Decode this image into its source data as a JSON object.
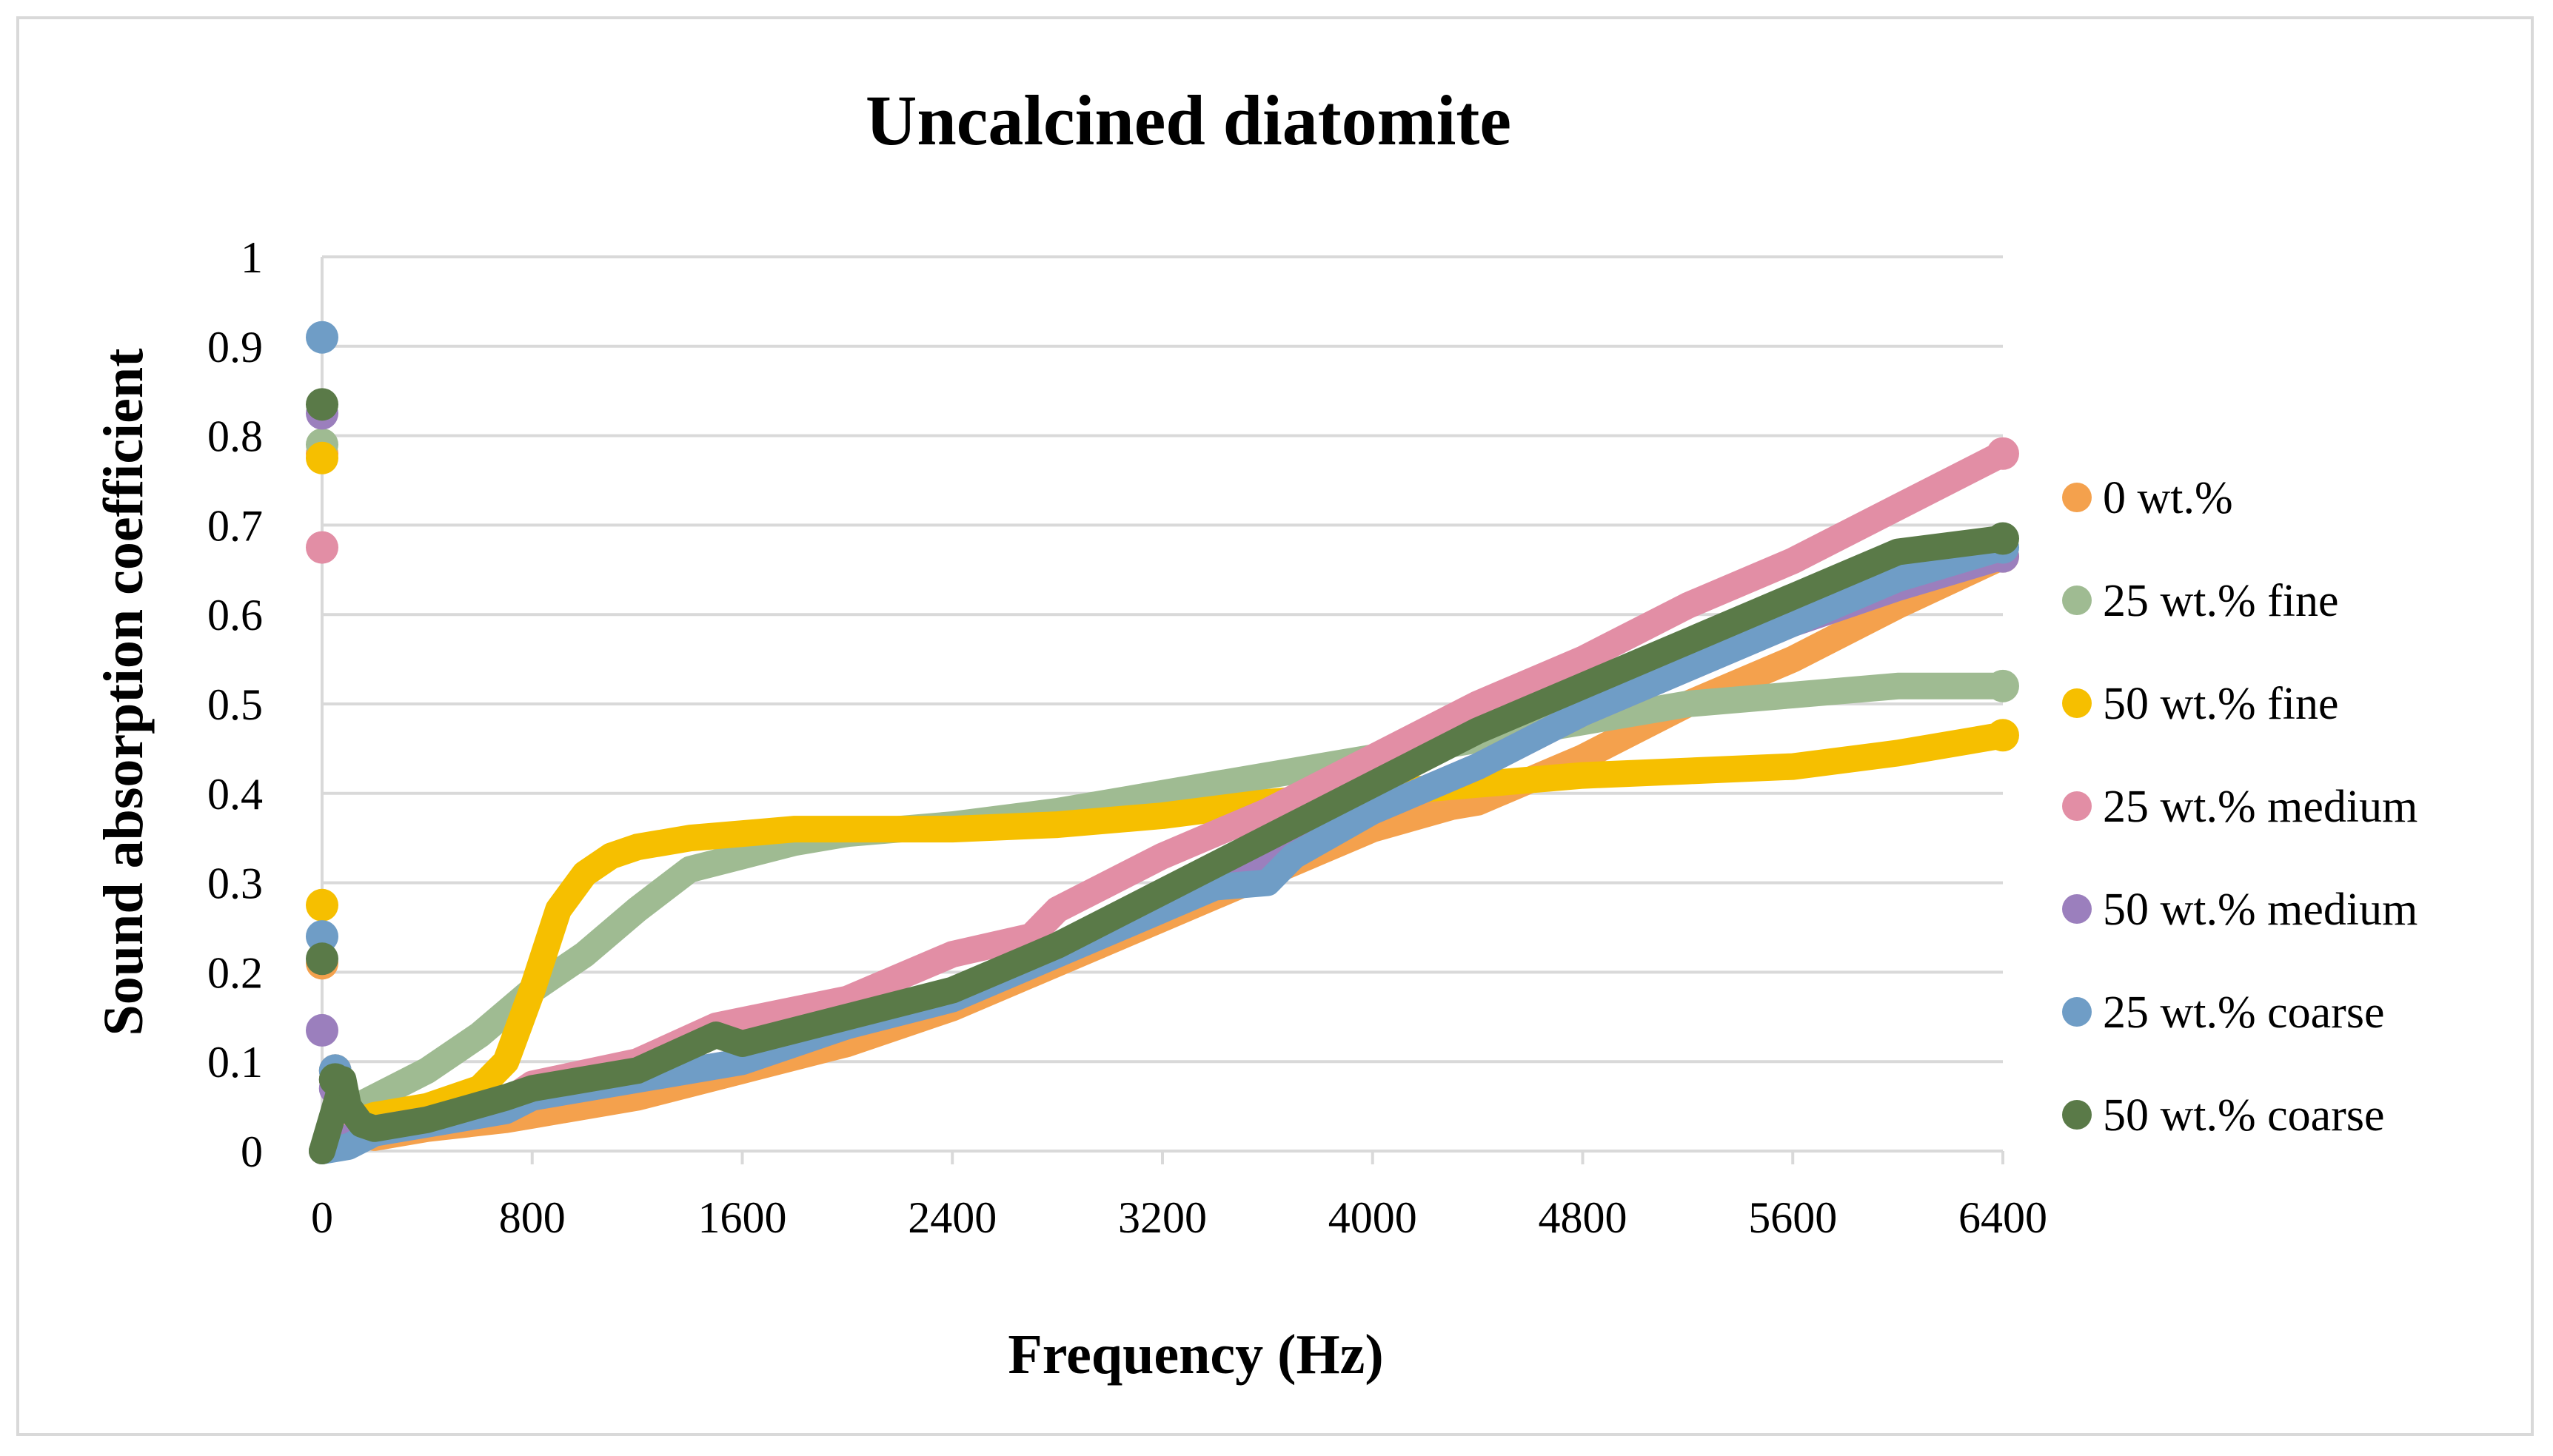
{
  "chart_data": {
    "type": "scatter",
    "title": "Uncalcined diatomite",
    "xlabel": "Frequency (Hz)",
    "ylabel": "Sound absorption coefficient",
    "xlim": [
      0,
      6400
    ],
    "ylim": [
      0,
      1
    ],
    "xticks": [
      0,
      800,
      1600,
      2400,
      3200,
      4000,
      4800,
      5600,
      6400
    ],
    "yticks": [
      0,
      0.1,
      0.2,
      0.3,
      0.4,
      0.5,
      0.6,
      0.7,
      0.8,
      0.9,
      1
    ],
    "grid": true,
    "legend_position": "right",
    "series": [
      {
        "name": "0 wt.%",
        "color": "#f4a14d",
        "outliers": [
          [
            0,
            0.78
          ],
          [
            0,
            0.21
          ],
          [
            50,
            0.09
          ]
        ],
        "curve": [
          [
            0,
            0
          ],
          [
            100,
            0.02
          ],
          [
            200,
            0.015
          ],
          [
            400,
            0.025
          ],
          [
            700,
            0.035
          ],
          [
            800,
            0.04
          ],
          [
            1200,
            0.06
          ],
          [
            1600,
            0.09
          ],
          [
            2000,
            0.12
          ],
          [
            2400,
            0.16
          ],
          [
            2800,
            0.21
          ],
          [
            3200,
            0.26
          ],
          [
            3600,
            0.31
          ],
          [
            4000,
            0.36
          ],
          [
            4300,
            0.385
          ],
          [
            4400,
            0.39
          ],
          [
            4800,
            0.44
          ],
          [
            5200,
            0.5
          ],
          [
            5600,
            0.55
          ],
          [
            6000,
            0.61
          ],
          [
            6400,
            0.665
          ]
        ]
      },
      {
        "name": "25 wt.% fine",
        "color": "#9fbb92",
        "outliers": [
          [
            0,
            0.79
          ]
        ],
        "curve": [
          [
            0,
            0
          ],
          [
            100,
            0.045
          ],
          [
            200,
            0.06
          ],
          [
            400,
            0.09
          ],
          [
            600,
            0.13
          ],
          [
            800,
            0.18
          ],
          [
            1000,
            0.22
          ],
          [
            1200,
            0.27
          ],
          [
            1400,
            0.315
          ],
          [
            1600,
            0.33
          ],
          [
            1800,
            0.345
          ],
          [
            2000,
            0.355
          ],
          [
            2400,
            0.365
          ],
          [
            2800,
            0.38
          ],
          [
            3200,
            0.4
          ],
          [
            3600,
            0.42
          ],
          [
            4000,
            0.44
          ],
          [
            4400,
            0.46
          ],
          [
            4800,
            0.48
          ],
          [
            5200,
            0.5
          ],
          [
            5600,
            0.51
          ],
          [
            6000,
            0.52
          ],
          [
            6400,
            0.52
          ]
        ]
      },
      {
        "name": "50 wt.% fine",
        "color": "#f6bf00",
        "outliers": [
          [
            0,
            0.775
          ],
          [
            0,
            0.275
          ]
        ],
        "curve": [
          [
            0,
            0
          ],
          [
            100,
            0.03
          ],
          [
            200,
            0.04
          ],
          [
            400,
            0.05
          ],
          [
            600,
            0.07
          ],
          [
            700,
            0.1
          ],
          [
            800,
            0.18
          ],
          [
            900,
            0.27
          ],
          [
            1000,
            0.31
          ],
          [
            1100,
            0.33
          ],
          [
            1200,
            0.34
          ],
          [
            1400,
            0.35
          ],
          [
            1600,
            0.355
          ],
          [
            1800,
            0.36
          ],
          [
            2000,
            0.36
          ],
          [
            2400,
            0.36
          ],
          [
            2800,
            0.365
          ],
          [
            3200,
            0.375
          ],
          [
            3600,
            0.39
          ],
          [
            4000,
            0.4
          ],
          [
            4400,
            0.41
          ],
          [
            4800,
            0.42
          ],
          [
            5200,
            0.425
          ],
          [
            5600,
            0.43
          ],
          [
            6000,
            0.445
          ],
          [
            6400,
            0.465
          ]
        ]
      },
      {
        "name": "25 wt.% medium",
        "color": "#e28ea5",
        "outliers": [
          [
            0,
            0.675
          ],
          [
            50,
            0.08
          ]
        ],
        "curve": [
          [
            0,
            0
          ],
          [
            100,
            0.03
          ],
          [
            200,
            0.025
          ],
          [
            400,
            0.035
          ],
          [
            700,
            0.055
          ],
          [
            800,
            0.075
          ],
          [
            1200,
            0.1
          ],
          [
            1500,
            0.14
          ],
          [
            2000,
            0.17
          ],
          [
            2400,
            0.22
          ],
          [
            2700,
            0.24
          ],
          [
            2800,
            0.27
          ],
          [
            3200,
            0.33
          ],
          [
            3600,
            0.38
          ],
          [
            4000,
            0.44
          ],
          [
            4400,
            0.5
          ],
          [
            4800,
            0.55
          ],
          [
            5200,
            0.61
          ],
          [
            5600,
            0.66
          ],
          [
            6000,
            0.72
          ],
          [
            6400,
            0.78
          ]
        ]
      },
      {
        "name": "50 wt.% medium",
        "color": "#9b7fbd",
        "outliers": [
          [
            0,
            0.825
          ],
          [
            0,
            0.135
          ],
          [
            50,
            0.07
          ]
        ],
        "curve": [
          [
            0,
            0
          ],
          [
            100,
            0.015
          ],
          [
            200,
            0.02
          ],
          [
            400,
            0.03
          ],
          [
            700,
            0.045
          ],
          [
            800,
            0.06
          ],
          [
            1200,
            0.08
          ],
          [
            1600,
            0.1
          ],
          [
            2000,
            0.14
          ],
          [
            2400,
            0.17
          ],
          [
            2800,
            0.22
          ],
          [
            3200,
            0.27
          ],
          [
            3600,
            0.33
          ],
          [
            4000,
            0.38
          ],
          [
            4400,
            0.43
          ],
          [
            4800,
            0.49
          ],
          [
            5200,
            0.54
          ],
          [
            5600,
            0.59
          ],
          [
            6000,
            0.63
          ],
          [
            6400,
            0.665
          ]
        ]
      },
      {
        "name": "25 wt.% coarse",
        "color": "#6f9dc6",
        "outliers": [
          [
            0,
            0.91
          ],
          [
            0,
            0.24
          ],
          [
            50,
            0.09
          ]
        ],
        "curve": [
          [
            0,
            0
          ],
          [
            100,
            0.005
          ],
          [
            200,
            0.02
          ],
          [
            400,
            0.03
          ],
          [
            700,
            0.045
          ],
          [
            800,
            0.06
          ],
          [
            1200,
            0.08
          ],
          [
            1600,
            0.1
          ],
          [
            2000,
            0.14
          ],
          [
            2400,
            0.17
          ],
          [
            2800,
            0.22
          ],
          [
            3200,
            0.27
          ],
          [
            3400,
            0.295
          ],
          [
            3600,
            0.3
          ],
          [
            3700,
            0.33
          ],
          [
            4000,
            0.38
          ],
          [
            4400,
            0.43
          ],
          [
            4800,
            0.49
          ],
          [
            5200,
            0.54
          ],
          [
            5600,
            0.59
          ],
          [
            6000,
            0.64
          ],
          [
            6400,
            0.675
          ]
        ]
      },
      {
        "name": "50 wt.% coarse",
        "color": "#5a7a48",
        "outliers": [
          [
            0,
            0.835
          ],
          [
            0,
            0.215
          ],
          [
            50,
            0.08
          ]
        ],
        "curve": [
          [
            0,
            0
          ],
          [
            80,
            0.08
          ],
          [
            100,
            0.05
          ],
          [
            150,
            0.03
          ],
          [
            200,
            0.025
          ],
          [
            400,
            0.035
          ],
          [
            700,
            0.06
          ],
          [
            800,
            0.07
          ],
          [
            1200,
            0.09
          ],
          [
            1500,
            0.13
          ],
          [
            1600,
            0.12
          ],
          [
            2000,
            0.15
          ],
          [
            2400,
            0.18
          ],
          [
            2800,
            0.23
          ],
          [
            3200,
            0.29
          ],
          [
            3600,
            0.35
          ],
          [
            4000,
            0.41
          ],
          [
            4400,
            0.47
          ],
          [
            4800,
            0.52
          ],
          [
            5200,
            0.57
          ],
          [
            5600,
            0.62
          ],
          [
            6000,
            0.67
          ],
          [
            6400,
            0.685
          ]
        ]
      }
    ]
  }
}
